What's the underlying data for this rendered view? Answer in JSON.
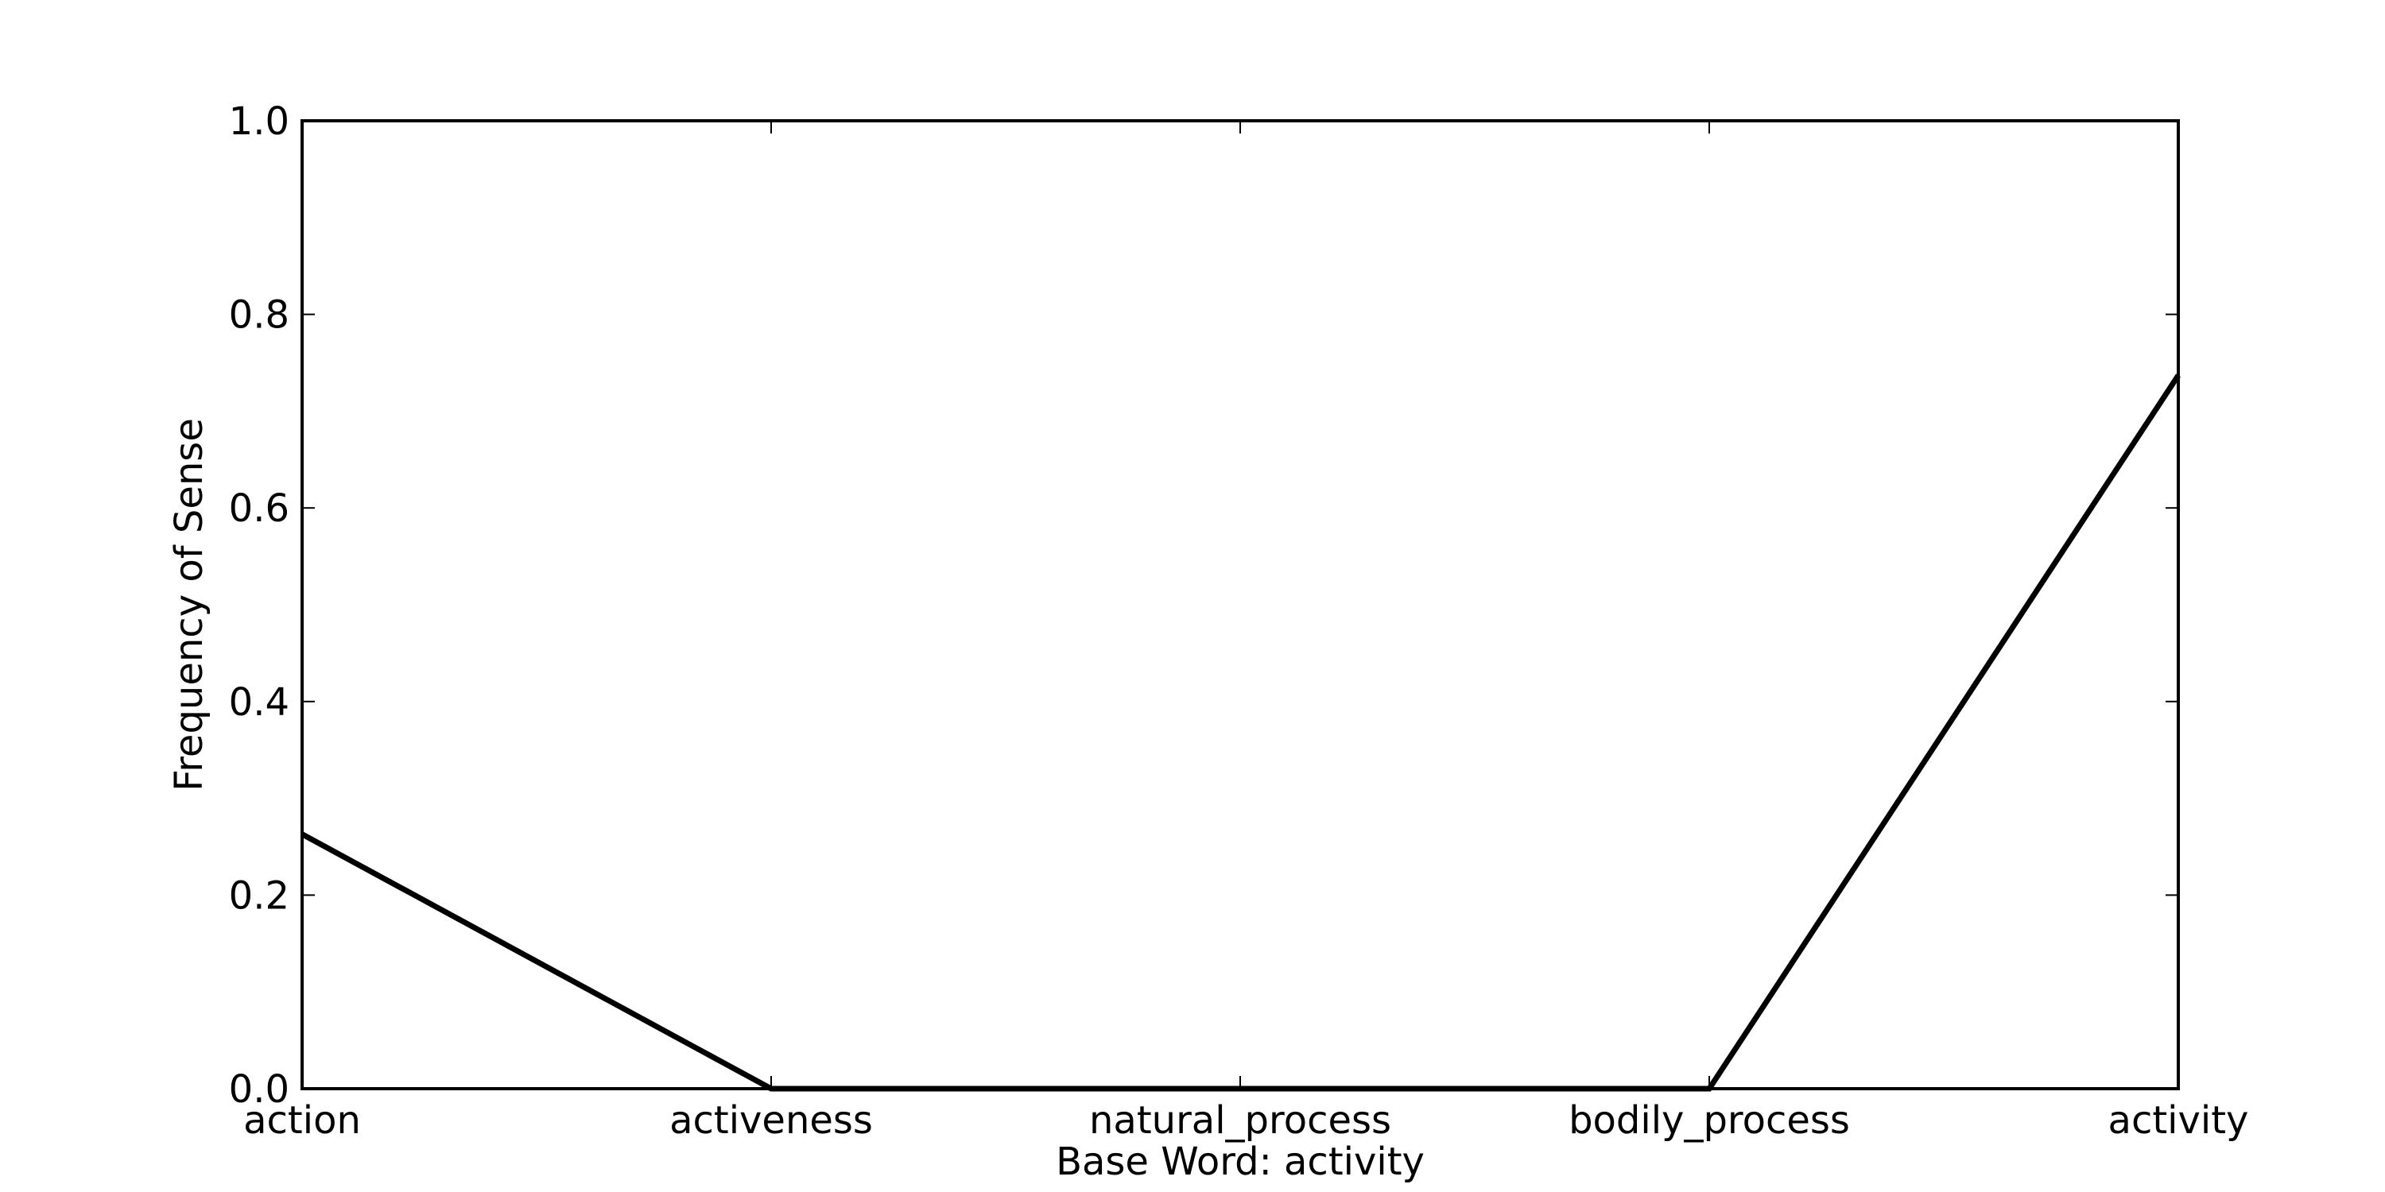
{
  "chart_data": {
    "type": "line",
    "title": "",
    "xlabel": "Base Word: activity",
    "ylabel": "Frequency of Sense",
    "categories": [
      "action",
      "activeness",
      "natural_process",
      "bodily_process",
      "activity"
    ],
    "series": [
      {
        "values": [
          0.263,
          0.0,
          0.0,
          0.0,
          0.737
        ],
        "color": "#000000"
      }
    ],
    "ylim": [
      0.0,
      1.0
    ],
    "yticks": [
      "0.0",
      "0.2",
      "0.4",
      "0.6",
      "0.8",
      "1.0"
    ],
    "grid": false,
    "legend": "none"
  }
}
